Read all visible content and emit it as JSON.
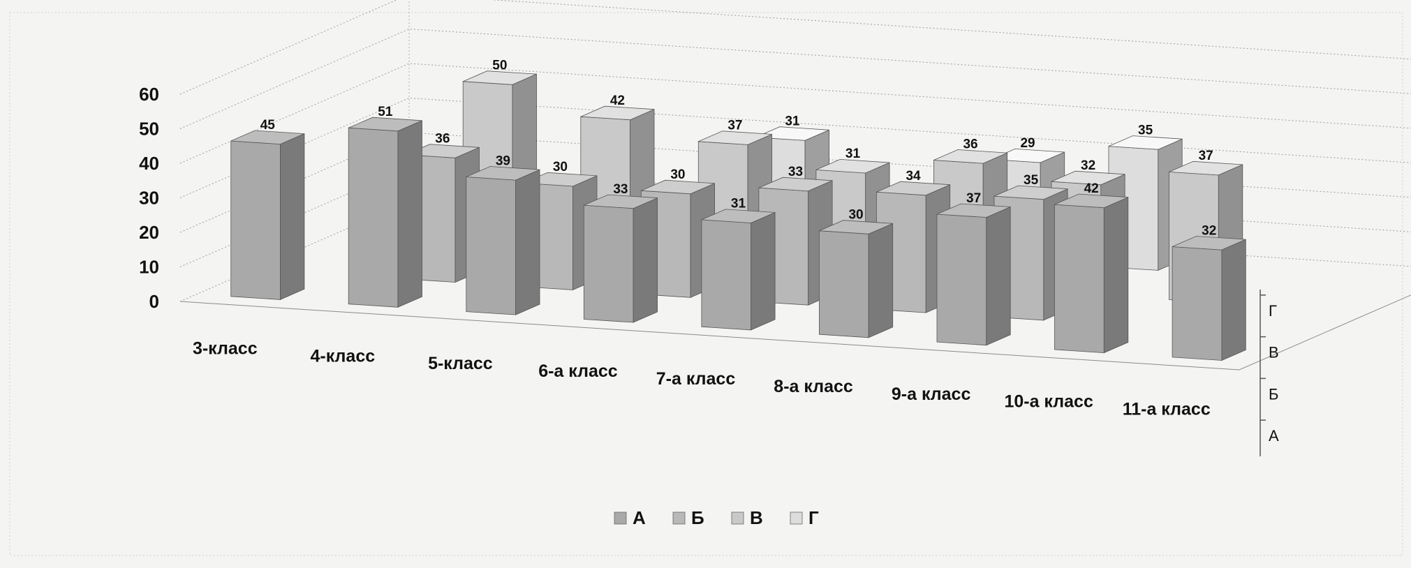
{
  "chart_data": {
    "type": "bar",
    "view": "3d-column",
    "categories": [
      "3-класс",
      "4-класс",
      "5-класс",
      "6-а класс",
      "7-а класс",
      "8-а класс",
      "9-а класс",
      "10-а класс",
      "11-а класс"
    ],
    "series": [
      {
        "name": "А",
        "color": "#a9a9a9",
        "values": [
          45,
          51,
          39,
          33,
          31,
          30,
          37,
          42,
          32
        ]
      },
      {
        "name": "Б",
        "color": "#b8b8b8",
        "values": [
          null,
          36,
          30,
          30,
          33,
          34,
          35,
          null,
          null
        ]
      },
      {
        "name": "В",
        "color": "#c9c9c9",
        "values": [
          null,
          50,
          42,
          37,
          31,
          36,
          32,
          37,
          null
        ]
      },
      {
        "name": "Г",
        "color": "#dddddd",
        "values": [
          null,
          null,
          null,
          31,
          null,
          29,
          35,
          null,
          null
        ]
      }
    ],
    "y_ticks": [
      "0",
      "10",
      "20",
      "30",
      "40",
      "50",
      "60"
    ],
    "ylim": [
      0,
      60
    ],
    "grid": true,
    "legend_position": "bottom"
  }
}
